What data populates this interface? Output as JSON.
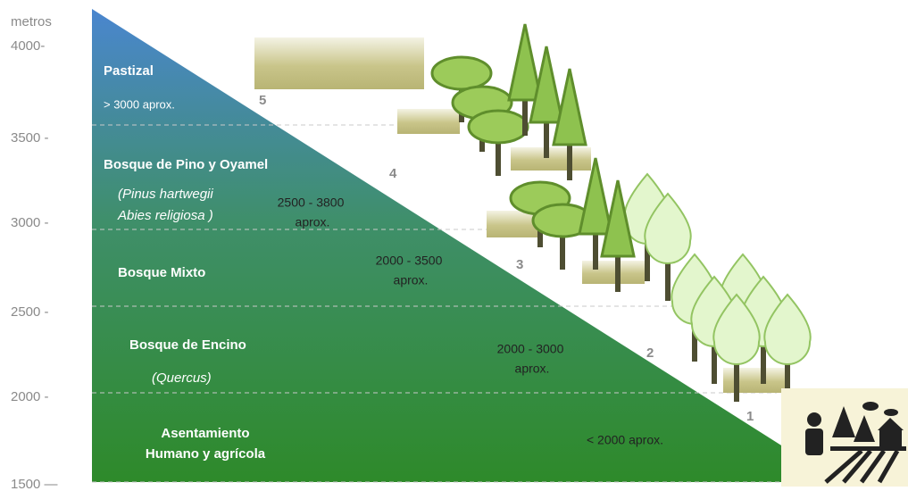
{
  "axis": {
    "unit": "metros",
    "labels": [
      "4000-",
      "3500 -",
      "3000 -",
      "2500 -",
      "2000 -",
      "1500 —"
    ]
  },
  "zones": [
    {
      "name": [
        "Pastizal"
      ],
      "range": [
        "> 3000 aprox."
      ],
      "number": "5"
    },
    {
      "name": [
        "Bosque  de Pino y Oyamel"
      ],
      "species": [
        "(Pinus hartwegii",
        "Abies religiosa )"
      ],
      "range": [
        "2500 - 3800",
        "aprox."
      ],
      "number": "4"
    },
    {
      "name": [
        "Bosque Mixto"
      ],
      "range": [
        "2000 - 3500",
        "aprox."
      ],
      "number": "3"
    },
    {
      "name": [
        "Bosque de Encino"
      ],
      "species": [
        "(Quercus)"
      ],
      "range": [
        "2000 - 3000",
        "aprox."
      ],
      "number": "2"
    },
    {
      "name": [
        "Asentamiento",
        "Humano y agrícola"
      ],
      "range": [
        "< 2000 aprox."
      ],
      "number": "1"
    }
  ]
}
